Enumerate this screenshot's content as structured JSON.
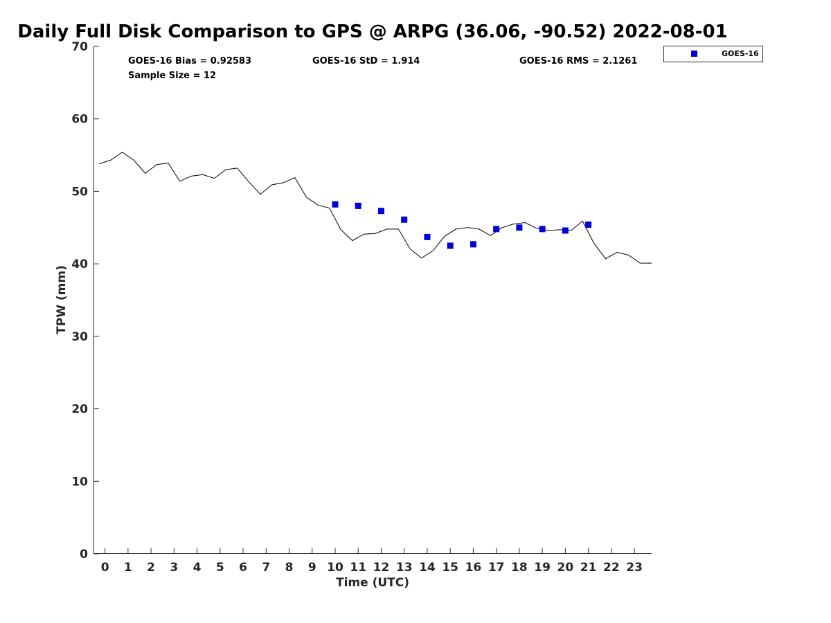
{
  "chart_data": {
    "type": "line",
    "title": "Daily Full Disk Comparison to GPS @ ARPG (36.06, -90.52) 2022-08-01",
    "xlabel": "Time (UTC)",
    "ylabel": "TPW (mm)",
    "xlim": [
      -0.5,
      23.75
    ],
    "ylim": [
      0,
      70
    ],
    "xticks": [
      0,
      1,
      2,
      3,
      4,
      5,
      6,
      7,
      8,
      9,
      10,
      11,
      12,
      13,
      14,
      15,
      16,
      17,
      18,
      19,
      20,
      21,
      22,
      23
    ],
    "yticks": [
      0,
      10,
      20,
      30,
      40,
      50,
      60,
      70
    ],
    "grid": false,
    "legend_position": "top-right, outside",
    "stats": {
      "bias": "GOES-16 Bias = 0.92583",
      "std": "GOES-16 StD = 1.914",
      "rms": "GOES-16 RMS = 2.1261",
      "sample": "Sample Size = 12"
    },
    "series": [
      {
        "type": "line",
        "color": "#000000",
        "x": [
          -0.25,
          0.25,
          0.75,
          1.25,
          1.75,
          2.25,
          2.75,
          3.25,
          3.75,
          4.25,
          4.75,
          5.25,
          5.75,
          6.25,
          6.75,
          7.25,
          7.75,
          8.25,
          8.75,
          9.25,
          9.75,
          10.25,
          10.75,
          11.25,
          11.75,
          12.25,
          12.75,
          13.25,
          13.75,
          14.25,
          14.75,
          15.25,
          15.75,
          16.25,
          16.75,
          17.25,
          17.75,
          18.25,
          18.75,
          19.25,
          19.75,
          20.25,
          20.75,
          21.25,
          21.75,
          22.25,
          22.75,
          23.25,
          23.75
        ],
        "values": [
          53.8,
          54.3,
          55.4,
          54.3,
          52.5,
          53.7,
          53.9,
          51.4,
          52.1,
          52.3,
          51.8,
          53.0,
          53.2,
          51.3,
          49.6,
          50.9,
          51.2,
          51.9,
          49.2,
          48.1,
          47.7,
          44.7,
          43.2,
          44.1,
          44.2,
          44.8,
          44.8,
          42.1,
          40.8,
          41.8,
          43.8,
          44.8,
          45.0,
          44.8,
          43.9,
          45.0,
          45.5,
          45.7,
          44.9,
          44.6,
          44.7,
          44.6,
          45.9,
          42.8,
          40.7,
          41.6,
          41.2,
          40.1,
          40.1
        ]
      },
      {
        "name": "GOES-16",
        "type": "scatter",
        "color": "#0000dd",
        "marker": "square",
        "x": [
          10,
          11,
          12,
          13,
          14,
          15,
          16,
          17,
          18,
          19,
          20,
          21
        ],
        "values": [
          48.2,
          48.0,
          47.3,
          46.1,
          43.7,
          42.5,
          42.7,
          44.8,
          45.0,
          44.8,
          44.6,
          45.4
        ]
      }
    ]
  }
}
